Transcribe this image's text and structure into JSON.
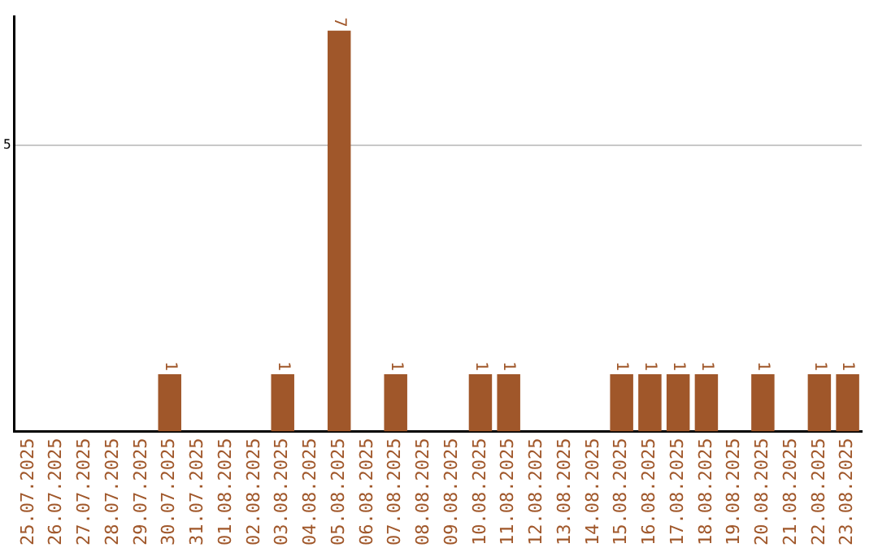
{
  "chart_data": {
    "type": "bar",
    "categories": [
      "25.07.2025",
      "26.07.2025",
      "27.07.2025",
      "28.07.2025",
      "29.07.2025",
      "30.07.2025",
      "31.07.2025",
      "01.08.2025",
      "02.08.2025",
      "03.08.2025",
      "04.08.2025",
      "05.08.2025",
      "06.08.2025",
      "07.08.2025",
      "08.08.2025",
      "09.08.2025",
      "10.08.2025",
      "11.08.2025",
      "12.08.2025",
      "13.08.2025",
      "14.08.2025",
      "15.08.2025",
      "16.08.2025",
      "17.08.2025",
      "18.08.2025",
      "19.08.2025",
      "20.08.2025",
      "21.08.2025",
      "22.08.2025",
      "23.08.2025"
    ],
    "values": [
      0,
      0,
      0,
      0,
      0,
      1,
      0,
      0,
      0,
      1,
      0,
      7,
      0,
      1,
      0,
      0,
      1,
      1,
      0,
      0,
      0,
      1,
      1,
      1,
      1,
      0,
      1,
      0,
      1,
      1
    ],
    "value_labels": [
      null,
      null,
      null,
      null,
      null,
      "1",
      null,
      null,
      null,
      "1",
      null,
      "7",
      null,
      "1",
      null,
      null,
      "1",
      "1",
      null,
      null,
      null,
      "1",
      "1",
      "1",
      "1",
      null,
      "1",
      null,
      "1",
      "1"
    ],
    "color": "#a0572a",
    "ylim": [
      0,
      7.25
    ],
    "yticks": [
      5
    ],
    "grid": "y",
    "legend": false
  }
}
